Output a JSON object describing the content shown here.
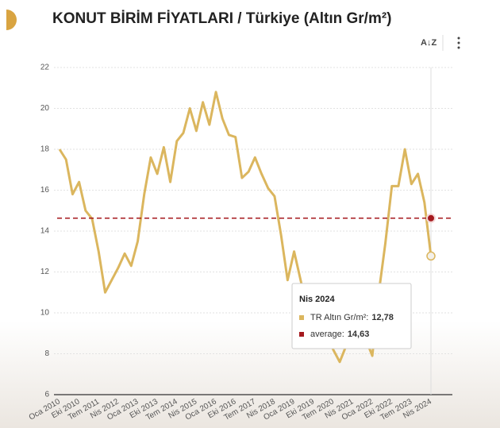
{
  "chart_data": {
    "type": "line",
    "title": "KONUT BİRİM FİYATLARI / Türkiye (Altın Gr/m²)",
    "categories": [
      "Oca 2010",
      null,
      null,
      "Eki 2010",
      null,
      null,
      "Tem 2011",
      null,
      null,
      "Nis 2012",
      null,
      null,
      "Oca 2013",
      null,
      null,
      "Eki 2013",
      null,
      null,
      "Tem 2014",
      null,
      null,
      "Nis 2015",
      null,
      null,
      "Oca 2016",
      null,
      null,
      "Eki 2016",
      null,
      null,
      "Tem 2017",
      null,
      null,
      "Nis 2018",
      null,
      null,
      "Oca 2019",
      null,
      null,
      "Eki 2019",
      null,
      null,
      "Tem 2020",
      null,
      null,
      "Nis 2021",
      null,
      null,
      "Oca 2022",
      null,
      null,
      "Eki 2022",
      null,
      null,
      "Tem 2023",
      null,
      null,
      "Nis 2024"
    ],
    "series": [
      {
        "color": "#dbb65e",
        "values": [
          18.0,
          17.5,
          15.8,
          16.4,
          15.0,
          14.6,
          13.0,
          11.0,
          11.6,
          12.2,
          12.9,
          12.3,
          13.5,
          15.8,
          17.6,
          16.8,
          18.1,
          16.4,
          18.4,
          18.8,
          20.0,
          18.9,
          20.3,
          19.2,
          20.8,
          19.5,
          18.7,
          18.6,
          16.6,
          16.9,
          17.6,
          16.8,
          16.1,
          15.7,
          13.8,
          11.6,
          13.0,
          11.6,
          10.2,
          9.6,
          9.3,
          9.0,
          8.2,
          7.6,
          8.4,
          8.5,
          8.6,
          8.7,
          7.9,
          11.0,
          13.4,
          16.2,
          16.2,
          18.0,
          16.3,
          16.8,
          15.4,
          12.78
        ]
      }
    ],
    "average_line": {
      "value": 14.63,
      "color": "#a5191e"
    },
    "ylim": [
      6,
      22
    ],
    "yticks": [
      6,
      8,
      10,
      12,
      14,
      16,
      18,
      20,
      22
    ],
    "grid": true,
    "tooltip": {
      "title": "Nis 2024",
      "items": [
        {
          "label": "TR Altın Gr/m²:",
          "value_label": "12,78"
        },
        {
          "label": "average:",
          "value_label": "14,63"
        }
      ]
    }
  }
}
